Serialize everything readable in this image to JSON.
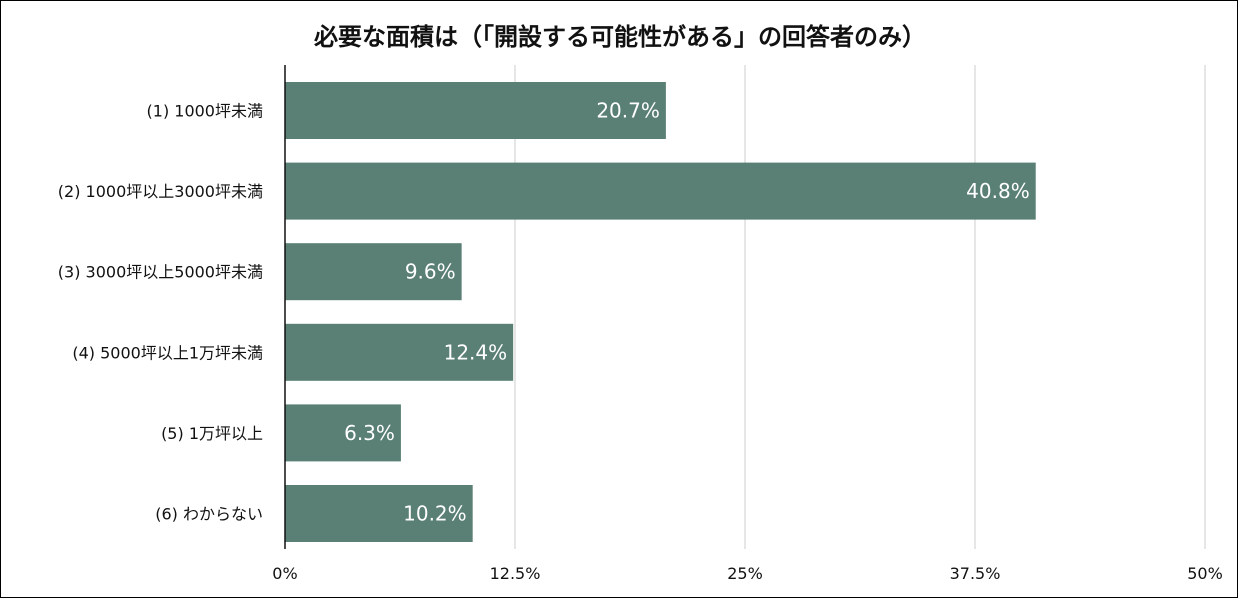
{
  "chart_data": {
    "type": "bar",
    "orientation": "horizontal",
    "title": "必要な面積は（「開設する可能性がある」の回答者のみ）",
    "categories": [
      "(1) 1000坪未満",
      "(2) 1000坪以上3000坪未満",
      "(3) 3000坪以上5000坪未満",
      "(4) 5000坪以上1万坪未満",
      "(5) 1万坪以上",
      "(6) わからない"
    ],
    "values": [
      20.7,
      40.8,
      9.6,
      12.4,
      6.3,
      10.2
    ],
    "data_labels": [
      "20.7%",
      "40.8%",
      "9.6%",
      "12.4%",
      "6.3%",
      "10.2%"
    ],
    "xlim": [
      0,
      50
    ],
    "ticks": [
      0,
      12.5,
      25,
      37.5,
      50
    ],
    "tick_labels": [
      "0%",
      "12.5%",
      "25%",
      "37.5%",
      "50%"
    ],
    "grid": "vertical",
    "bar_color": "#5a7f75",
    "label_color": "#ffffff",
    "grid_color": "#cccccc"
  }
}
